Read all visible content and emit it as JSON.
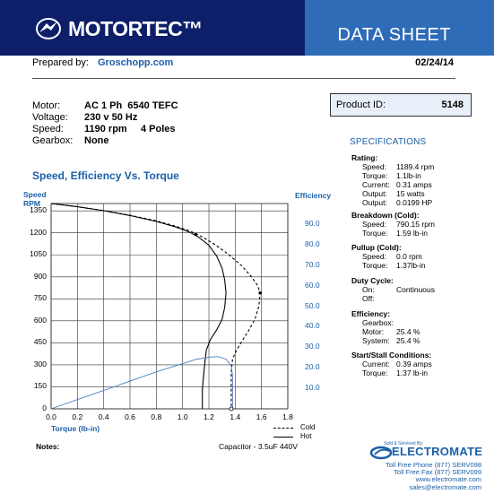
{
  "header": {
    "brand": "MOTORTEC™",
    "title": "DATA SHEET",
    "colors": {
      "left_bar": "#0e1f6a",
      "right_bar": "#2f6cb8",
      "accent": "#1b5fa8"
    }
  },
  "prepared": {
    "label": "Prepared by:",
    "name": "Groschopp.com",
    "date": "02/24/14"
  },
  "motor": [
    {
      "key": "Motor:",
      "value": "AC 1 Ph  6540 TEFC"
    },
    {
      "key": "Voltage:",
      "value": "230 v 50 Hz"
    },
    {
      "key": "Speed:",
      "value": "1190 rpm     4 Poles"
    },
    {
      "key": "Gearbox:",
      "value": "None"
    }
  ],
  "product": {
    "label": "Product ID:",
    "value": "5148"
  },
  "specifications": {
    "title": "SPECIFICATIONS",
    "rating": {
      "heading": "Rating:",
      "rows": [
        {
          "k": "Speed:",
          "v": "1189.4 rpm"
        },
        {
          "k": "Torque:",
          "v": "1.1lb-in"
        },
        {
          "k": "Current:",
          "v": "0.31 amps"
        },
        {
          "k": "Output:",
          "v": "15 watts"
        },
        {
          "k": "Output:",
          "v": "0.0199 HP"
        }
      ]
    },
    "breakdown": {
      "heading": "Breakdown (Cold):",
      "rows": [
        {
          "k": "Speed:",
          "v": "790.15 rpm"
        },
        {
          "k": "Torque:",
          "v": "1.59 lb-in"
        }
      ]
    },
    "pullup": {
      "heading": "Pullup (Cold):",
      "rows": [
        {
          "k": "Speed:",
          "v": "0.0 rpm"
        },
        {
          "k": "Torque:",
          "v": "1.37lb-in"
        }
      ]
    },
    "duty": {
      "heading": "Duty Cycle:",
      "rows": [
        {
          "k": "On:",
          "v": "Continuous"
        },
        {
          "k": "Off:",
          "v": ""
        }
      ]
    },
    "efficiency": {
      "heading": "Efficiency:",
      "rows": [
        {
          "k": "Gearbox:",
          "v": ""
        },
        {
          "k": "Motor:",
          "v": "25.4 %"
        },
        {
          "k": "System:",
          "v": "25.4 %"
        }
      ]
    },
    "stall": {
      "heading": "Start/Stall Conditions:",
      "rows": [
        {
          "k": "Current:",
          "v": "0.39 amps"
        },
        {
          "k": "Torque:",
          "v": "1.37 lb-in"
        }
      ]
    }
  },
  "chart_data": {
    "type": "line",
    "title": "Speed, Efficiency Vs. Torque",
    "xlabel": "Torque  (lb-in)",
    "ylabel": "Speed RPM",
    "y2label": "Efficiency",
    "xlim": [
      0,
      1.8
    ],
    "ylim": [
      0,
      1400
    ],
    "y2lim": [
      0,
      100
    ],
    "x_ticks": [
      "0.0",
      "0.2",
      "0.4",
      "0.6",
      "0.8",
      "1.0",
      "1.2",
      "1.4",
      "1.6",
      "1.8"
    ],
    "y_ticks": [
      "0",
      "150",
      "300",
      "450",
      "600",
      "750",
      "900",
      "1050",
      "1200",
      "1350"
    ],
    "y2_ticks": [
      "10.0",
      "20.0",
      "30.0",
      "40.0",
      "50.0",
      "60.0",
      "70.0",
      "80.0",
      "90.0"
    ],
    "grid": true,
    "legend": [
      {
        "label": "Cold",
        "style": "dashed"
      },
      {
        "label": "Hot",
        "style": "solid"
      }
    ],
    "series": [
      {
        "name": "Cold",
        "axis": "speed",
        "style": "dashed",
        "points": [
          [
            0.0,
            1400
          ],
          [
            0.2,
            1378
          ],
          [
            0.4,
            1352
          ],
          [
            0.6,
            1320
          ],
          [
            0.8,
            1282
          ],
          [
            0.95,
            1245
          ],
          [
            1.05,
            1215
          ],
          [
            1.15,
            1172
          ],
          [
            1.25,
            1118
          ],
          [
            1.35,
            1052
          ],
          [
            1.45,
            975
          ],
          [
            1.52,
            905
          ],
          [
            1.57,
            842
          ],
          [
            1.59,
            790
          ],
          [
            1.58,
            700
          ],
          [
            1.55,
            610
          ],
          [
            1.5,
            530
          ],
          [
            1.45,
            460
          ],
          [
            1.41,
            400
          ],
          [
            1.38,
            340
          ],
          [
            1.37,
            250
          ],
          [
            1.37,
            150
          ],
          [
            1.37,
            60
          ],
          [
            1.37,
            0
          ]
        ]
      },
      {
        "name": "Hot",
        "axis": "speed",
        "style": "solid",
        "points": [
          [
            0.0,
            1400
          ],
          [
            0.2,
            1378
          ],
          [
            0.4,
            1351
          ],
          [
            0.6,
            1318
          ],
          [
            0.8,
            1278
          ],
          [
            0.95,
            1240
          ],
          [
            1.05,
            1206
          ],
          [
            1.12,
            1172
          ],
          [
            1.2,
            1115
          ],
          [
            1.26,
            1040
          ],
          [
            1.3,
            960
          ],
          [
            1.32,
            880
          ],
          [
            1.33,
            790
          ],
          [
            1.32,
            690
          ],
          [
            1.3,
            610
          ],
          [
            1.26,
            540
          ],
          [
            1.21,
            470
          ],
          [
            1.18,
            400
          ],
          [
            1.17,
            320
          ],
          [
            1.16,
            230
          ],
          [
            1.15,
            130
          ],
          [
            1.15,
            40
          ],
          [
            1.15,
            0
          ]
        ]
      },
      {
        "name": "Efficiency",
        "axis": "efficiency",
        "style": "solid",
        "points": [
          [
            0.0,
            0
          ],
          [
            0.2,
            4.5
          ],
          [
            0.4,
            9
          ],
          [
            0.6,
            13.5
          ],
          [
            0.8,
            18
          ],
          [
            1.0,
            22
          ],
          [
            1.1,
            24
          ],
          [
            1.2,
            25.2
          ],
          [
            1.27,
            25.4
          ],
          [
            1.33,
            24.2
          ],
          [
            1.37,
            21
          ],
          [
            1.38,
            16
          ],
          [
            1.38,
            0
          ]
        ]
      }
    ],
    "markers": [
      {
        "series": "Hot",
        "x": 1.1,
        "y": 1189.4,
        "shape": "dot"
      },
      {
        "series": "Cold",
        "x": 1.59,
        "y": 790.15,
        "shape": "dot"
      },
      {
        "series": "Cold",
        "x": 1.37,
        "y": 0,
        "shape": "circle"
      }
    ]
  },
  "footer": {
    "notes_label": "Notes:",
    "capacitor": "Capacitor - 3.5uF 440V",
    "sold_by": "Sold & Serviced By:",
    "distributor": "ELECTROMATE",
    "contact": [
      "Toll Free Phone  (877) SERV098",
      "Toll Free Fax  (877) SERV099",
      "www.electromate.com",
      "sales@electromate.com"
    ]
  }
}
